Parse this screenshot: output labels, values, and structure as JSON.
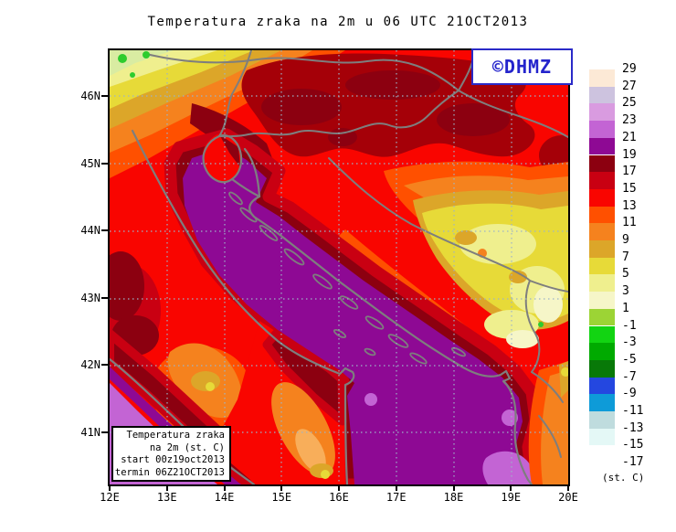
{
  "title": "Temperatura zraka na 2m u 06 UTC 21OCT2013",
  "logo": {
    "text": "©DHMZ",
    "color": "#2424CC"
  },
  "info_box": {
    "lines": [
      "Temperatura zraka",
      "na 2m (st. C)",
      "start 00z19oct2013",
      "termin 06Z21OCT2013"
    ]
  },
  "map": {
    "x_axis_labels": [
      "12E",
      "13E",
      "14E",
      "15E",
      "16E",
      "17E",
      "18E",
      "19E",
      "20E"
    ],
    "y_axis_labels": [
      "46N",
      "45N",
      "44N",
      "43N",
      "42N",
      "41N"
    ]
  },
  "colorbar": {
    "labels": [
      "29",
      "27",
      "25",
      "23",
      "21",
      "19",
      "17",
      "15",
      "13",
      "11",
      "9",
      "7",
      "5",
      "3",
      "1",
      "-1",
      "-3",
      "-5",
      "-7",
      "-9",
      "-11",
      "-13",
      "-15",
      "-17"
    ],
    "swatch_colors": [
      "#FCE9D6",
      "#CDC3DF",
      "#D99BE0",
      "#C364D4",
      "#8E0994",
      "#8C0010",
      "#C90012",
      "#F90500",
      "#FF5000",
      "#F5821E",
      "#DCA629",
      "#E7DA38",
      "#EFEF8E",
      "#F6F6C8",
      "#9CD435",
      "#12D412",
      "#00AA00",
      "#087908",
      "#2447E0",
      "#0E9BD8",
      "#BFDCDE",
      "#E4F8F6",
      "#FFFFFF"
    ],
    "unit": "(st. C)"
  },
  "palette": {
    "sea_19_21": "#8E0994",
    "orchid_21_23": "#C364D4",
    "maroon_17_19": "#8C0010",
    "maroon_blob": "#A50008",
    "darkred_15_17": "#C90012",
    "red_13_15": "#F90500",
    "orangered_11_13": "#FF5000",
    "orange_9_11": "#F5821E",
    "orange_light": "#F8AE5A",
    "gold_7_9": "#DCA629",
    "yellow_5_7": "#E7DA38",
    "paleyellow_3_5": "#EFEF8E",
    "cream_1_3": "#F6F6C8",
    "palegreen_corner": "#D9ECA2",
    "green_spot": "#2ECC2E",
    "coastline": "#7E7E7E",
    "grid_dots": "#9DB3C8",
    "frame": "#000000"
  }
}
